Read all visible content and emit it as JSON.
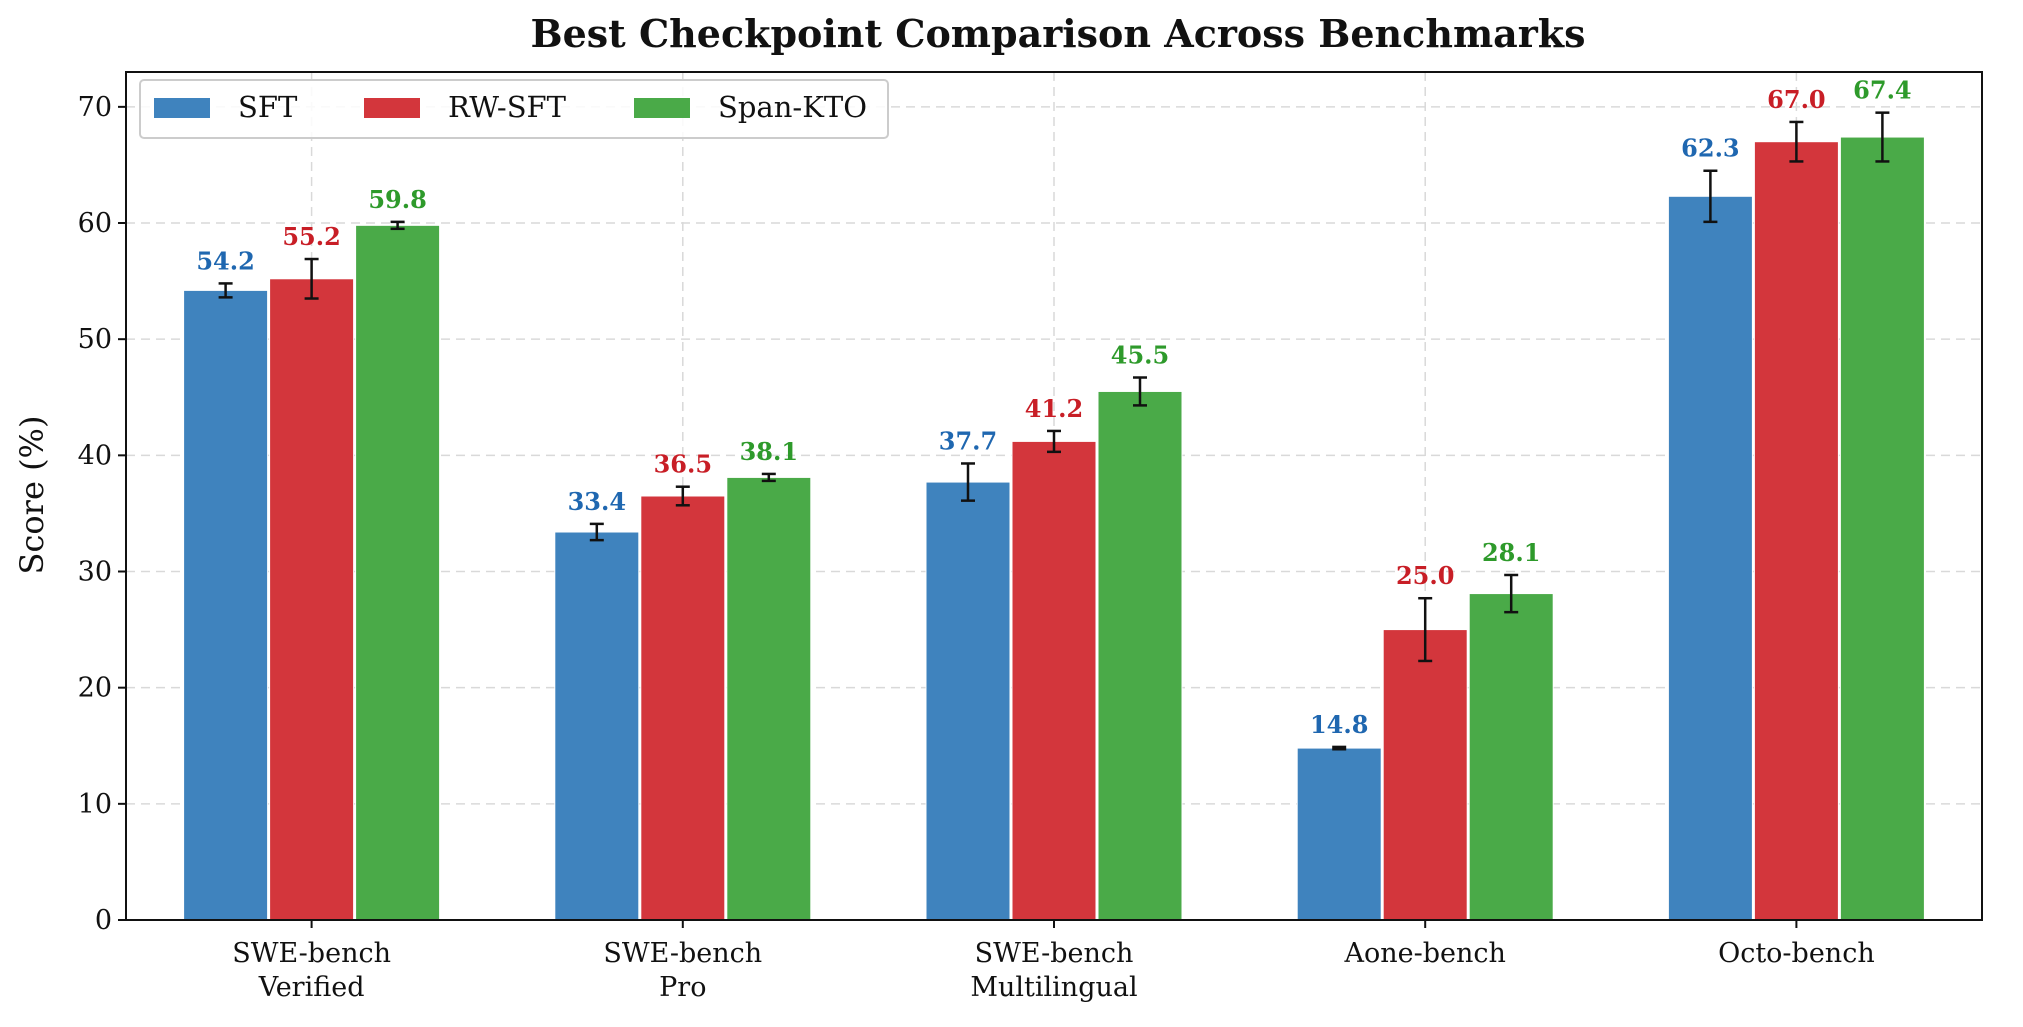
{
  "chart_data": {
    "type": "bar",
    "title": "Best Checkpoint Comparison Across Benchmarks",
    "xlabel": "",
    "ylabel": "Score (%)",
    "ylim": [
      0,
      73
    ],
    "yticks": [
      0,
      10,
      20,
      30,
      40,
      50,
      60,
      70
    ],
    "grid": true,
    "legend_position": "top-left",
    "categories": [
      [
        "SWE-bench",
        "Verified"
      ],
      [
        "SWE-bench",
        "Pro"
      ],
      [
        "SWE-bench",
        "Multilingual"
      ],
      [
        "Aone-bench"
      ],
      [
        "Octo-bench"
      ]
    ],
    "series": [
      {
        "name": "SFT",
        "color": "#3f83be",
        "label_color": "#1f67b0",
        "values": [
          54.2,
          33.4,
          37.7,
          14.8,
          62.3
        ],
        "error": [
          0.6,
          0.7,
          1.6,
          0.1,
          2.2
        ]
      },
      {
        "name": "RW-SFT",
        "color": "#d3363c",
        "label_color": "#c81e26",
        "values": [
          55.2,
          36.5,
          41.2,
          25.0,
          67.0
        ],
        "error": [
          1.7,
          0.8,
          0.9,
          2.7,
          1.7
        ]
      },
      {
        "name": "Span-KTO",
        "color": "#4aaa48",
        "label_color": "#2e9a2b",
        "values": [
          59.8,
          38.1,
          45.5,
          28.1,
          67.4
        ],
        "error": [
          0.3,
          0.3,
          1.2,
          1.6,
          2.1
        ]
      }
    ]
  }
}
